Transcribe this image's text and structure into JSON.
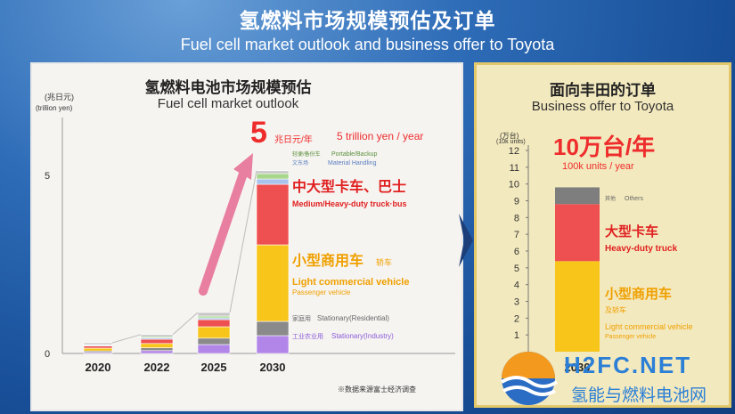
{
  "header": {
    "title_zh": "氢燃料市场规模预估及订单",
    "title_en": "Fuel cell market outlook and business offer to Toyota"
  },
  "left_chart": {
    "title_zh": "氢燃料电池市场规模预估",
    "title_en": "Fuel cell market outlook",
    "unit_zh": "(兆日元)",
    "unit_en": "(trillion yen)",
    "highlight_number": "5",
    "highlight_unit_zh": "兆日元/年",
    "highlight_en": "5 trillion yen / year",
    "footnote": "※数据来源富士经济调查"
  },
  "right_chart": {
    "title_zh": "面向丰田的订单",
    "title_en": "Business offer to Toyota",
    "unit_zh": "(万台)",
    "unit_en": "(10k units)",
    "highlight_zh": "10万台/年",
    "highlight_en": "100k units / year"
  },
  "watermark": {
    "brand": "H2FC.NET",
    "brand_zh": "氢能与燃料电池网"
  },
  "colors": {
    "pink": "#e87fa0",
    "silver": "#c8c8c8",
    "light_blue": "#a8c4ec",
    "green": "#a8d68a",
    "red": "#ee4f50",
    "yellow": "#f8c51a",
    "gray": "#8a8a8a",
    "purple": "#b286e8"
  },
  "chart_data": [
    {
      "type": "bar",
      "stacked": true,
      "title": "Fuel cell market outlook",
      "ylabel": "(trillion yen)",
      "ylim": [
        0,
        5.5
      ],
      "yticks": [
        0,
        5
      ],
      "categories": [
        "2020",
        "2022",
        "2025",
        "2030"
      ],
      "series": [
        {
          "name_zh": "工业农业用",
          "name": "Stationary(Industry)",
          "color": "#b286e8",
          "values": [
            0.03,
            0.08,
            0.25,
            0.5
          ]
        },
        {
          "name_zh": "家庭用",
          "name": "Stationary(Residential)",
          "color": "#8a8a8a",
          "values": [
            0.04,
            0.08,
            0.18,
            0.4
          ]
        },
        {
          "name_zh": "小型商用车",
          "name": "Light commercial vehicle",
          "sub": "Passenger vehicle",
          "extra_zh": "轿车",
          "color": "#f8c51a",
          "values": [
            0.08,
            0.12,
            0.32,
            2.15
          ]
        },
        {
          "name_zh": "中大型卡车、巴士",
          "name": "Medium/Heavy-duty truck·bus",
          "color": "#ee4f50",
          "values": [
            0.06,
            0.12,
            0.2,
            1.7
          ]
        },
        {
          "name_zh": "文东场",
          "name": "Material Handling",
          "color": "#a8c4ec",
          "values": [
            0.02,
            0.04,
            0.05,
            0.15
          ]
        },
        {
          "name_zh": "轻便/备份车",
          "name": "Portable/Backup",
          "color": "#a8d68a",
          "values": [
            0.02,
            0.03,
            0.05,
            0.15
          ]
        },
        {
          "name": "top",
          "color": "#c8c8c8",
          "values": [
            0.05,
            0.06,
            0.1,
            0.08
          ]
        }
      ],
      "annotation": "5 trillion yen / year"
    },
    {
      "type": "bar",
      "stacked": true,
      "title": "Business offer to Toyota",
      "ylabel": "(10k units)",
      "ylim": [
        0,
        12
      ],
      "yticks": [
        1,
        2,
        3,
        4,
        5,
        6,
        7,
        8,
        9,
        10,
        11,
        12
      ],
      "categories": [
        "2030"
      ],
      "series": [
        {
          "name_zh": "小型商用车",
          "name": "Light commercial vehicle",
          "sub": "Passenger vehicle",
          "extra_zh": "及轿车",
          "color": "#f8c51a",
          "values": [
            5.4
          ]
        },
        {
          "name_zh": "大型卡车",
          "name": "Heavy-duty truck",
          "color": "#ee4f50",
          "values": [
            3.4
          ]
        },
        {
          "name_zh": "其他",
          "name": "Others",
          "color": "#7e7e7e",
          "values": [
            1.0
          ]
        }
      ],
      "annotation": "100k units / year"
    }
  ]
}
